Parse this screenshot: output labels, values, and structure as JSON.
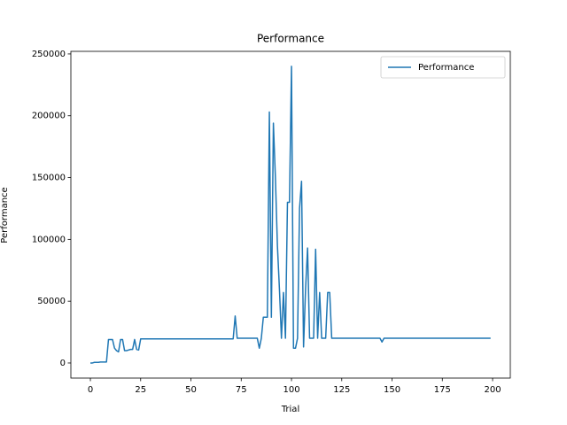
{
  "chart_data": {
    "type": "line",
    "title": "Performance",
    "x_label": "Trial",
    "y_label": "Performance",
    "x": [
      0,
      1,
      2,
      3,
      4,
      5,
      6,
      7,
      8,
      9,
      10,
      11,
      12,
      13,
      14,
      15,
      16,
      17,
      18,
      19,
      20,
      21,
      22,
      23,
      24,
      25,
      26,
      27,
      28,
      29,
      30,
      31,
      32,
      33,
      34,
      35,
      36,
      37,
      38,
      39,
      40,
      41,
      42,
      43,
      44,
      45,
      46,
      47,
      48,
      49,
      50,
      51,
      52,
      53,
      54,
      55,
      56,
      57,
      58,
      59,
      60,
      61,
      62,
      63,
      64,
      65,
      66,
      67,
      68,
      69,
      70,
      71,
      72,
      73,
      74,
      75,
      76,
      77,
      78,
      79,
      80,
      81,
      82,
      83,
      84,
      85,
      86,
      87,
      88,
      89,
      90,
      91,
      92,
      93,
      94,
      95,
      96,
      97,
      98,
      99,
      100,
      101,
      102,
      103,
      104,
      105,
      106,
      107,
      108,
      109,
      110,
      111,
      112,
      113,
      114,
      115,
      116,
      117,
      118,
      119,
      120,
      121,
      122,
      123,
      124,
      125,
      126,
      127,
      128,
      129,
      130,
      131,
      132,
      133,
      134,
      135,
      136,
      137,
      138,
      139,
      140,
      141,
      142,
      143,
      144,
      145,
      146,
      147,
      148,
      149,
      150,
      151,
      152,
      153,
      154,
      155,
      156,
      157,
      158,
      159,
      160,
      161,
      162,
      163,
      164,
      165,
      166,
      167,
      168,
      169,
      170,
      171,
      172,
      173,
      174,
      175,
      176,
      177,
      178,
      179,
      180,
      181,
      182,
      183,
      184,
      185,
      186,
      187,
      188,
      189,
      190,
      191,
      192,
      193,
      194,
      195,
      196,
      197,
      198,
      199
    ],
    "series": [
      {
        "name": "Performance",
        "color": "#1f77b4",
        "values": [
          0,
          0,
          500,
          500,
          500,
          800,
          800,
          800,
          800,
          19000,
          19000,
          19000,
          12000,
          10000,
          9000,
          19000,
          19000,
          10000,
          10000,
          10500,
          11000,
          11000,
          19000,
          11000,
          10500,
          19500,
          19500,
          19500,
          19500,
          19500,
          19500,
          19500,
          19500,
          19500,
          19500,
          19500,
          19500,
          19500,
          19500,
          19500,
          19500,
          19500,
          19500,
          19500,
          19500,
          19500,
          19500,
          19500,
          19500,
          19500,
          19500,
          19500,
          19500,
          19500,
          19500,
          19500,
          19500,
          19500,
          19500,
          19500,
          19500,
          19500,
          19500,
          19500,
          19500,
          19500,
          19500,
          19500,
          19500,
          19500,
          19500,
          19500,
          38000,
          20000,
          20000,
          20000,
          20000,
          20000,
          20000,
          20000,
          20000,
          20000,
          20000,
          20000,
          12000,
          20000,
          37000,
          37000,
          37000,
          203000,
          37000,
          194000,
          150000,
          95000,
          60000,
          20000,
          57000,
          20000,
          130000,
          130000,
          240000,
          12000,
          12000,
          20000,
          125000,
          147000,
          13000,
          60000,
          93000,
          20000,
          20000,
          20000,
          92000,
          20000,
          57000,
          20000,
          20000,
          20000,
          57000,
          57000,
          20000,
          20000,
          20000,
          20000,
          20000,
          20000,
          20000,
          20000,
          20000,
          20000,
          20000,
          20000,
          20000,
          20000,
          20000,
          20000,
          20000,
          20000,
          20000,
          20000,
          20000,
          20000,
          20000,
          20000,
          20000,
          17000,
          20000,
          20000,
          20000,
          20000,
          20000,
          20000,
          20000,
          20000,
          20000,
          20000,
          20000,
          20000,
          20000,
          20000,
          20000,
          20000,
          20000,
          20000,
          20000,
          20000,
          20000,
          20000,
          20000,
          20000,
          20000,
          20000,
          20000,
          20000,
          20000,
          20000,
          20000,
          20000,
          20000,
          20000,
          20000,
          20000,
          20000,
          20000,
          20000,
          20000,
          20000,
          20000,
          20000,
          20000,
          20000,
          20000,
          20000,
          20000,
          20000,
          20000,
          20000,
          20000,
          20000,
          20000
        ]
      }
    ],
    "xlim": [
      -9.7,
      208.8
    ],
    "ylim": [
      -12200,
      252100
    ],
    "xticks": [
      0,
      25,
      50,
      75,
      100,
      125,
      150,
      175,
      200
    ],
    "yticks": [
      0,
      50000,
      100000,
      150000,
      200000,
      250000
    ],
    "legend": "upper right"
  }
}
